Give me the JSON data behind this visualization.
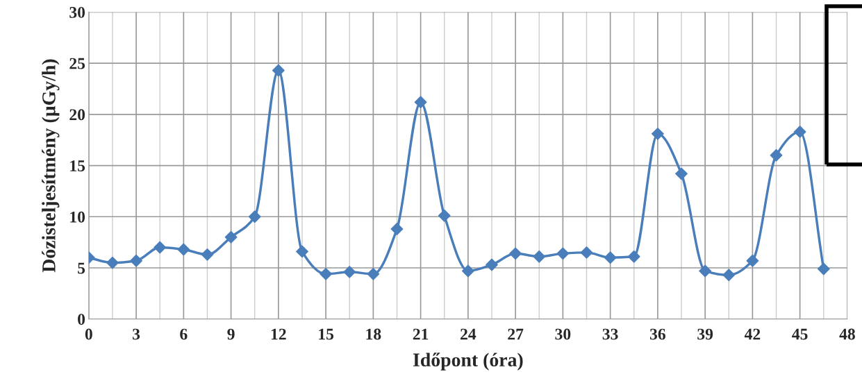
{
  "chart_data": {
    "type": "line",
    "xlabel": "Időpont (óra)",
    "ylabel": "Dózisteljesítmény (µGy/h)",
    "x": [
      0,
      1.5,
      3,
      4.5,
      6,
      7.5,
      9,
      10.5,
      12,
      13.5,
      15,
      16.5,
      18,
      19.5,
      21,
      22.5,
      24,
      25.5,
      27,
      28.5,
      30,
      31.5,
      33,
      34.5,
      36,
      37.5,
      39,
      40.5,
      42,
      43.5,
      45,
      46.5
    ],
    "series": [
      {
        "color": "#4a7ebb",
        "values": [
          6.0,
          5.5,
          5.7,
          7.0,
          6.8,
          6.3,
          8.0,
          10.0,
          24.3,
          6.6,
          4.4,
          4.6,
          4.4,
          8.8,
          21.2,
          10.1,
          4.7,
          5.3,
          6.4,
          6.1,
          6.4,
          6.5,
          6.0,
          6.1,
          18.1,
          14.2,
          4.7,
          4.3,
          5.7,
          16.0,
          18.3,
          4.9
        ]
      }
    ],
    "xlim": [
      0,
      48
    ],
    "xticks": [
      0,
      {
        "value": 1.5,
        "label": null
      },
      3,
      {
        "value": 4.5,
        "label": null
      },
      6,
      {
        "value": 7.5,
        "label": null
      },
      9,
      {
        "value": 10.5,
        "label": null
      },
      12,
      {
        "value": 13.5,
        "label": null
      },
      15,
      {
        "value": 16.5,
        "label": null
      },
      18,
      {
        "value": 19.5,
        "label": null
      },
      21,
      {
        "value": 22.5,
        "label": null
      },
      24,
      {
        "value": 25.5,
        "label": null
      },
      27,
      {
        "value": 28.5,
        "label": null
      },
      30,
      {
        "value": 31.5,
        "label": null
      },
      33,
      {
        "value": 34.5,
        "label": null
      },
      36,
      {
        "value": 37.5,
        "label": null
      },
      39,
      {
        "value": 40.5,
        "label": null
      },
      42,
      {
        "value": 43.5,
        "label": null
      },
      45,
      {
        "value": 46.5,
        "label": null
      },
      48
    ],
    "ylim": [
      0,
      30
    ],
    "yticks": [
      0,
      5,
      10,
      15,
      20,
      25,
      30
    ],
    "grid": true,
    "marker": "diamond",
    "line_style": "solid",
    "legend": false
  }
}
